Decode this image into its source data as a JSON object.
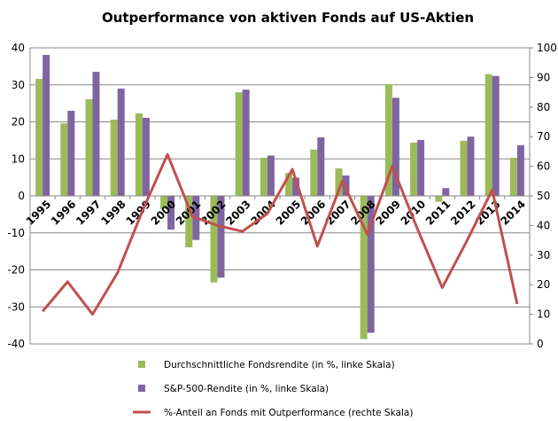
{
  "chart_data": {
    "type": "bar",
    "title": "Outperformance von aktiven Fonds auf US-Aktien",
    "categories": [
      "1995",
      "1996",
      "1997",
      "1998",
      "1999",
      "2000",
      "2001",
      "2002",
      "2003",
      "2004",
      "2005",
      "2006",
      "2007",
      "2008",
      "2009",
      "2010",
      "2011",
      "2012",
      "2013",
      "2014"
    ],
    "ylim_left": [
      -40,
      40
    ],
    "yticks_left": [
      -40,
      -30,
      -20,
      -10,
      0,
      10,
      20,
      30,
      40
    ],
    "ylim_right": [
      0,
      100
    ],
    "yticks_right": [
      0,
      10,
      20,
      30,
      40,
      50,
      60,
      70,
      80,
      90,
      100
    ],
    "grid": true,
    "legend_placement": "bottom",
    "series": [
      {
        "name": "Durchschnittliche Fondsrendite (in %, linke Skala)",
        "type": "bar",
        "axis": "left",
        "color": "#9BBB59",
        "values": [
          31.6,
          19.6,
          26.1,
          20.6,
          22.3,
          -3.5,
          -13.9,
          -23.4,
          28.0,
          10.3,
          6.2,
          12.5,
          7.4,
          -38.7,
          30.2,
          14.4,
          -1.6,
          14.9,
          32.9,
          10.3
        ]
      },
      {
        "name": "S&P-500-Rendite (in %, linke Skala)",
        "type": "bar",
        "axis": "left",
        "color": "#8064A2",
        "values": [
          38.1,
          23.0,
          33.5,
          29.0,
          21.1,
          -9.1,
          -11.9,
          -22.1,
          28.7,
          10.9,
          4.9,
          15.8,
          5.5,
          -37.0,
          26.5,
          15.1,
          2.1,
          16.0,
          32.4,
          13.7
        ]
      },
      {
        "name": "%-Anteil an Fonds mit Outperformance (rechte Skala)",
        "type": "line",
        "axis": "right",
        "color": "#C0504D",
        "values": [
          11,
          21,
          10,
          24,
          45,
          64,
          43,
          40,
          38,
          44,
          59,
          33,
          55,
          37,
          60,
          39,
          19,
          35,
          52,
          13.5
        ]
      }
    ]
  }
}
